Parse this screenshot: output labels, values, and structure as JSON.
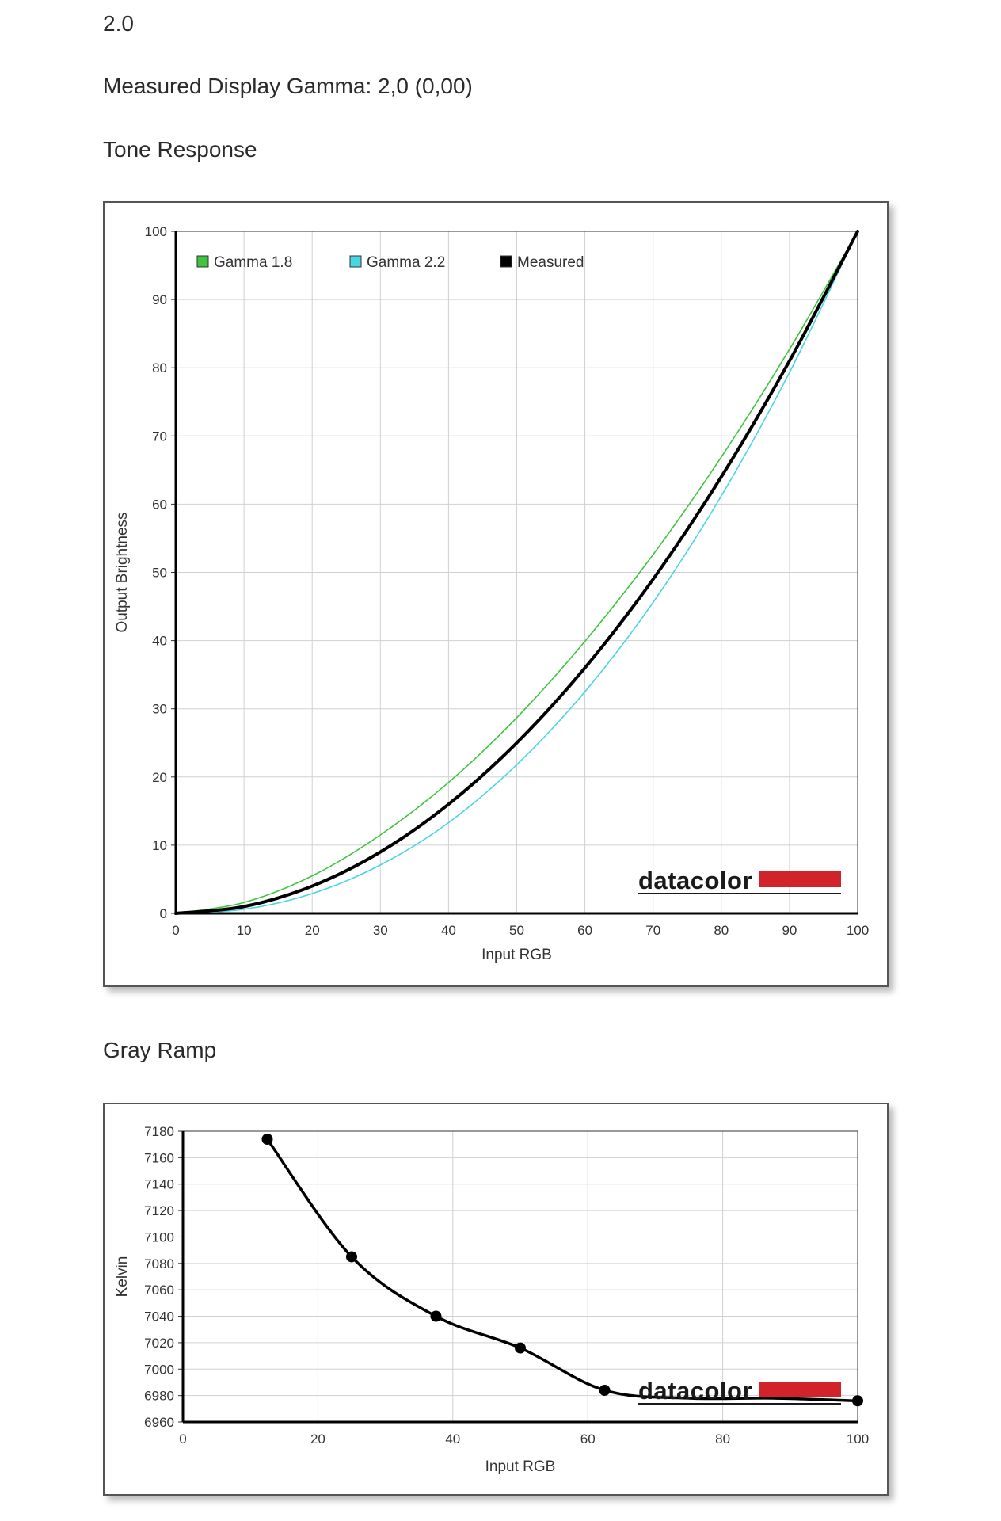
{
  "header": {
    "top_value": "2.0",
    "measured_gamma": "Measured Display Gamma: 2,0 (0,00)",
    "tone_title": "Tone Response",
    "gray_title": "Gray Ramp"
  },
  "brand": {
    "name": "datacolor",
    "bar_color": "#d2232a"
  },
  "colors": {
    "gamma18": "#3ec43e",
    "gamma22": "#49d6e2",
    "measured": "#000000",
    "grid": "#d0d0d0"
  },
  "chart_data": [
    {
      "type": "line",
      "xlabel": "Input RGB",
      "ylabel": "Output Brightness",
      "xlim": [
        0,
        100
      ],
      "ylim": [
        0,
        100
      ],
      "xticks": [
        0,
        10,
        20,
        30,
        40,
        50,
        60,
        70,
        80,
        90,
        100
      ],
      "yticks": [
        0,
        10,
        20,
        30,
        40,
        50,
        60,
        70,
        80,
        90,
        100
      ],
      "grid": true,
      "legend_position": "top-left",
      "x": [
        0,
        10,
        20,
        30,
        40,
        50,
        60,
        70,
        80,
        90,
        100
      ],
      "series": [
        {
          "name": "Gamma 1.8",
          "color": "#3ec43e",
          "values": [
            0,
            1.6,
            5.5,
            11.5,
            19.2,
            28.7,
            39.9,
            52.6,
            66.9,
            82.7,
            100
          ]
        },
        {
          "name": "Gamma 2.2",
          "color": "#49d6e2",
          "values": [
            0,
            0.6,
            2.9,
            7.1,
            13.3,
            21.8,
            32.5,
            45.6,
            61.2,
            79.3,
            100
          ]
        },
        {
          "name": "Measured",
          "color": "#000000",
          "values": [
            0,
            1.0,
            4.0,
            9.0,
            16.0,
            25.0,
            36.0,
            49.0,
            64.0,
            81.0,
            100
          ]
        }
      ]
    },
    {
      "type": "line",
      "xlabel": "Input RGB",
      "ylabel": "Kelvin",
      "xlim": [
        0,
        100
      ],
      "ylim": [
        6960,
        7180
      ],
      "xticks": [
        0,
        20,
        40,
        60,
        80,
        100
      ],
      "yticks": [
        6960,
        6980,
        7000,
        7020,
        7040,
        7060,
        7080,
        7100,
        7120,
        7140,
        7160,
        7180
      ],
      "grid": true,
      "x": [
        12.5,
        25,
        37.5,
        50,
        62.5,
        75,
        87.5,
        100
      ],
      "series": [
        {
          "values": [
            7174,
            7085,
            7040,
            7016,
            6984,
            6978,
            6978,
            6976
          ],
          "markers": [
            true,
            true,
            true,
            true,
            true,
            false,
            false,
            true
          ]
        }
      ]
    }
  ]
}
